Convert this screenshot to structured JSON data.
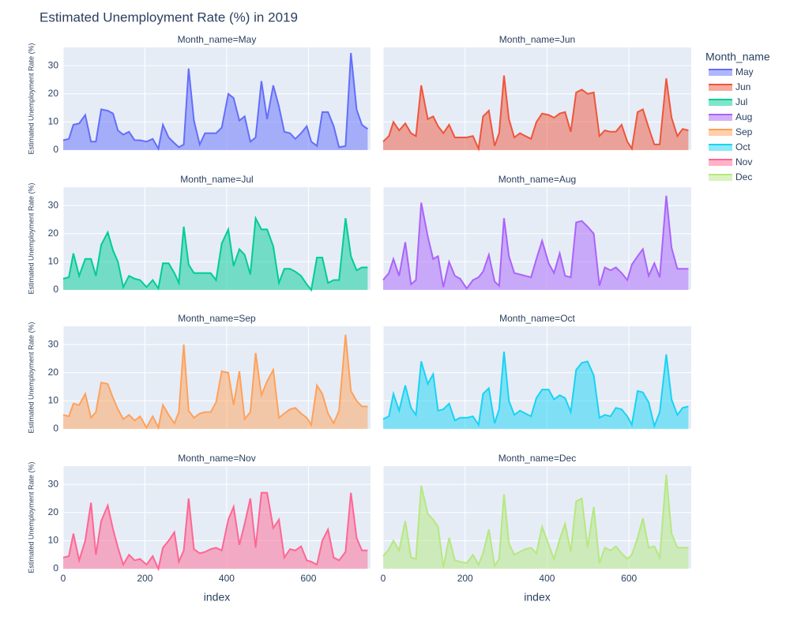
{
  "chart_data": {
    "type": "area",
    "title": "Estimated Unemployment Rate (%) in 2019",
    "x_label": "index",
    "y_label": "Estimated Unemployment Rate (%)",
    "legend_title": "Month_name",
    "xlim": [
      0,
      752
    ],
    "xticks": [
      0,
      200,
      400,
      600
    ],
    "ylim": [
      0,
      36.5
    ],
    "yticks": [
      0,
      10,
      20,
      30
    ],
    "grid": true,
    "legend_position": "right",
    "x": [
      0,
      14,
      25,
      39,
      54,
      68,
      80,
      93,
      109,
      122,
      134,
      147,
      161,
      175,
      188,
      204,
      219,
      233,
      244,
      258,
      272,
      283,
      295,
      307,
      320,
      334,
      347,
      361,
      374,
      388,
      404,
      417,
      431,
      444,
      458,
      471,
      485,
      499,
      514,
      528,
      541,
      555,
      568,
      582,
      596,
      607,
      621,
      634,
      648,
      662,
      675,
      691,
      704,
      718,
      731,
      745
    ],
    "series": [
      {
        "name": "May",
        "facet_label": "Month_name=May",
        "color": "#636efa",
        "values": [
          3.5,
          4,
          9,
          9.5,
          12.5,
          3,
          3,
          14.5,
          14,
          13,
          7,
          5.5,
          6.5,
          3.5,
          3.5,
          3,
          4,
          0.5,
          9,
          4.5,
          2.5,
          1,
          2,
          29,
          10.5,
          2,
          6,
          6,
          6,
          8,
          20,
          18.5,
          10.5,
          12,
          3,
          4.5,
          24.5,
          11,
          23,
          15.5,
          6.5,
          6,
          4,
          6,
          8.5,
          3,
          1.5,
          13.5,
          13.5,
          8.5,
          1,
          1.5,
          34.5,
          14.5,
          9,
          7.5
        ]
      },
      {
        "name": "Jun",
        "facet_label": "Month_name=Jun",
        "color": "#ef553b",
        "values": [
          3,
          5,
          10,
          7,
          9.5,
          6,
          5,
          23,
          11,
          12,
          8.5,
          6,
          9,
          4.5,
          4.5,
          4.5,
          5,
          0.5,
          12,
          14,
          1.5,
          6,
          26.5,
          11,
          4.5,
          6,
          5,
          4,
          10,
          13,
          12.5,
          11.5,
          13,
          13.5,
          6.5,
          20.5,
          21.5,
          20,
          20.5,
          5,
          7,
          6.5,
          6.5,
          9,
          3,
          0.5,
          13.5,
          14.5,
          8,
          2,
          2,
          25.5,
          11.5,
          5,
          7.5,
          7
        ]
      },
      {
        "name": "Jul",
        "facet_label": "Month_name=Jul",
        "color": "#00cc96",
        "values": [
          4,
          4.5,
          13,
          5,
          11,
          11,
          5,
          16,
          20.5,
          14,
          10,
          1,
          5,
          4,
          3.5,
          1,
          3.5,
          0.5,
          9.5,
          9.5,
          6,
          2.5,
          22.5,
          9,
          6,
          6,
          6,
          6,
          3.5,
          16.5,
          21.5,
          8.5,
          14.5,
          12.5,
          5.5,
          25.5,
          21.5,
          21.5,
          15.5,
          2.5,
          7.5,
          7.5,
          6.5,
          5,
          2,
          0,
          11.5,
          11.5,
          2.5,
          3.5,
          3.5,
          25.5,
          12,
          7,
          8,
          8
        ]
      },
      {
        "name": "Aug",
        "facet_label": "Month_name=Aug",
        "color": "#ab63fa",
        "values": [
          3.5,
          6,
          11,
          5,
          17,
          2,
          3.5,
          31,
          19,
          11,
          12,
          1,
          10,
          5,
          4,
          0.5,
          3.5,
          4.5,
          6.5,
          12.5,
          3,
          1.5,
          25.5,
          12,
          6,
          5.5,
          5,
          4.5,
          11,
          17.5,
          9.5,
          6,
          13,
          5,
          4.5,
          24,
          24.5,
          22.5,
          20,
          1.5,
          8,
          7,
          8,
          6,
          3.5,
          9,
          12,
          14.5,
          5,
          9.5,
          4.5,
          33.5,
          15,
          7.5,
          7.5,
          7.5
        ]
      },
      {
        "name": "Sep",
        "facet_label": "Month_name=Sep",
        "color": "#ffa15a",
        "values": [
          5,
          4.5,
          9,
          8.5,
          12.5,
          4,
          6,
          16.5,
          16,
          11,
          7,
          3.5,
          5,
          3,
          4.5,
          0.5,
          4.5,
          0.5,
          8.5,
          5,
          2,
          6,
          30,
          6.5,
          4,
          5.5,
          6,
          6,
          9.5,
          20.5,
          20,
          8.5,
          20.5,
          3.5,
          6,
          27,
          12,
          17,
          21,
          4,
          5.5,
          7,
          7.5,
          5.5,
          4,
          1.5,
          15.5,
          12.5,
          5.5,
          2,
          6.5,
          33.5,
          13.5,
          10,
          8,
          8
        ]
      },
      {
        "name": "Oct",
        "facet_label": "Month_name=Oct",
        "color": "#19d3f3",
        "values": [
          3.5,
          4.5,
          12.5,
          6.5,
          15.5,
          7.5,
          5,
          24,
          16,
          19.5,
          6.5,
          7,
          9,
          3,
          4,
          4,
          4.5,
          1.5,
          12.5,
          14.5,
          2,
          7,
          27.5,
          10,
          5,
          6.5,
          5.5,
          4.5,
          11,
          14,
          14,
          10.5,
          12,
          11,
          6,
          21,
          23.5,
          24,
          19,
          4,
          5,
          4.5,
          7.5,
          7,
          4.5,
          1.5,
          13.5,
          13,
          9.5,
          1,
          6,
          26.5,
          10.5,
          5,
          7.5,
          8
        ]
      },
      {
        "name": "Nov",
        "facet_label": "Month_name=Nov",
        "color": "#ff6692",
        "values": [
          4,
          4.5,
          12.5,
          3,
          10,
          23.5,
          5,
          17,
          22.5,
          14,
          7.5,
          1.5,
          5,
          3,
          3.5,
          1.5,
          4.5,
          0,
          7.5,
          10,
          13,
          2.5,
          6.5,
          25,
          7,
          5.5,
          6,
          7,
          7.5,
          6.5,
          17.5,
          22,
          8.5,
          16,
          25,
          7.5,
          27,
          27,
          14.5,
          17.5,
          4,
          7,
          6.5,
          8,
          3,
          2.5,
          1.5,
          10,
          14,
          4,
          3,
          6,
          27,
          11,
          6.5,
          6.5
        ]
      },
      {
        "name": "Dec",
        "facet_label": "Month_name=Dec",
        "color": "#b6e880",
        "values": [
          4.5,
          7,
          10,
          6.5,
          17,
          4,
          3.5,
          29.5,
          19.5,
          17.5,
          15,
          0.5,
          11,
          3,
          2.5,
          2,
          5,
          1.5,
          5.5,
          14,
          1,
          3.5,
          26.5,
          9,
          5,
          6,
          7,
          7.5,
          5.5,
          15,
          8.5,
          3.5,
          10.5,
          16,
          6,
          24,
          25,
          7.5,
          22,
          2,
          7.5,
          6.5,
          8,
          5.5,
          3.5,
          5,
          11,
          18,
          7.5,
          8,
          4,
          33.5,
          12.5,
          7.5,
          7.5,
          7.5
        ]
      }
    ]
  }
}
